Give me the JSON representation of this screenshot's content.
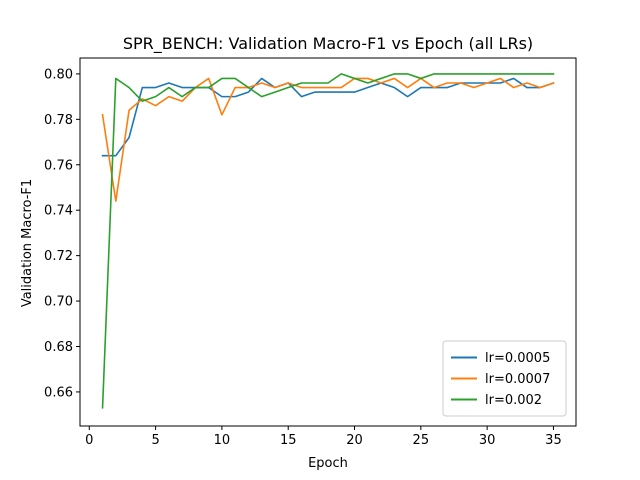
{
  "chart_data": {
    "type": "line",
    "title": "SPR_BENCH: Validation Macro-F1 vs Epoch (all LRs)",
    "xlabel": "Epoch",
    "ylabel": "Validation Macro-F1",
    "xlim": [
      -0.7,
      36.7
    ],
    "ylim": [
      0.645,
      0.807
    ],
    "x_ticks": [
      0,
      5,
      10,
      15,
      20,
      25,
      30,
      35
    ],
    "y_ticks": [
      0.66,
      0.68,
      0.7,
      0.72,
      0.74,
      0.76,
      0.78,
      0.8
    ],
    "y_tick_labels": [
      "0.66",
      "0.68",
      "0.70",
      "0.72",
      "0.74",
      "0.76",
      "0.78",
      "0.80"
    ],
    "legend_position": "lower-right",
    "grid": false,
    "x": [
      1,
      2,
      3,
      4,
      5,
      6,
      7,
      8,
      9,
      10,
      11,
      12,
      13,
      14,
      15,
      16,
      17,
      18,
      19,
      20,
      21,
      22,
      23,
      24,
      25,
      26,
      27,
      28,
      29,
      30,
      31,
      32,
      33,
      34,
      35
    ],
    "series": [
      {
        "name": "lr=0.0005",
        "color": "#1f77b4",
        "values": [
          0.764,
          0.764,
          0.772,
          0.794,
          0.794,
          0.796,
          0.794,
          0.794,
          0.794,
          0.79,
          0.79,
          0.792,
          0.798,
          0.794,
          0.796,
          0.79,
          0.792,
          0.792,
          0.792,
          0.792,
          0.794,
          0.796,
          0.794,
          0.79,
          0.794,
          0.794,
          0.794,
          0.796,
          0.796,
          0.796,
          0.796,
          0.798,
          0.794,
          0.794,
          0.796
        ]
      },
      {
        "name": "lr=0.0007",
        "color": "#ff7f0e",
        "values": [
          0.782,
          0.744,
          0.784,
          0.789,
          0.786,
          0.79,
          0.788,
          0.794,
          0.798,
          0.782,
          0.794,
          0.794,
          0.796,
          0.794,
          0.796,
          0.794,
          0.794,
          0.794,
          0.794,
          0.798,
          0.798,
          0.796,
          0.798,
          0.794,
          0.798,
          0.794,
          0.796,
          0.796,
          0.794,
          0.796,
          0.798,
          0.794,
          0.796,
          0.794,
          0.796
        ]
      },
      {
        "name": "lr=0.002",
        "color": "#2ca02c",
        "values": [
          0.653,
          0.798,
          0.794,
          0.788,
          0.79,
          0.794,
          0.79,
          0.794,
          0.794,
          0.798,
          0.798,
          0.794,
          0.79,
          0.792,
          0.794,
          0.796,
          0.796,
          0.796,
          0.8,
          0.798,
          0.796,
          0.798,
          0.8,
          0.8,
          0.798,
          0.8,
          0.8,
          0.8,
          0.8,
          0.8,
          0.8,
          0.8,
          0.8,
          0.8,
          0.8
        ]
      }
    ]
  }
}
